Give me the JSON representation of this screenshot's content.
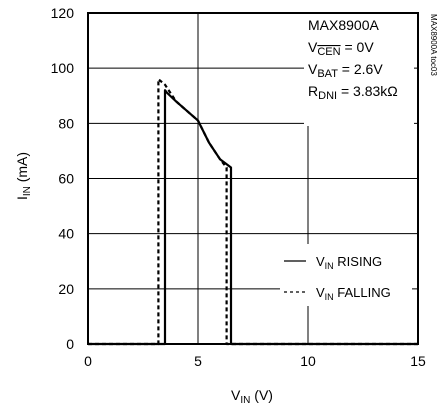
{
  "chart_data": {
    "type": "line",
    "xlabel": {
      "main": "V",
      "sub": "IN",
      "unit": " (V)"
    },
    "ylabel": {
      "main": "I",
      "sub": "IN",
      "unit": " (mA)"
    },
    "xlim": [
      0,
      15
    ],
    "ylim": [
      0,
      120
    ],
    "xticks": [
      0,
      5,
      10,
      15
    ],
    "yticks": [
      0,
      20,
      40,
      60,
      80,
      100,
      120
    ],
    "grid": true,
    "annotations": {
      "part": "MAX8900A",
      "vcen": {
        "main": "V",
        "sub": "CEN",
        "value": " = 0V"
      },
      "vbat": {
        "main": "V",
        "sub": "BAT",
        "value": " = 2.6V"
      },
      "rdni": {
        "main": "R",
        "sub": "DNI",
        "value": " = 3.83kΩ"
      }
    },
    "sidenote": "MAX8900A toc03",
    "legend_position": "bottom-right",
    "series": [
      {
        "name": {
          "main": "V",
          "sub": "IN",
          "rest": " RISING"
        },
        "style": "solid",
        "color": "#000000",
        "x": [
          0,
          3.5,
          3.5,
          3.6,
          4.0,
          5.0,
          5.5,
          6.0,
          6.5,
          6.5,
          15
        ],
        "y": [
          0,
          0,
          92,
          91,
          88,
          81,
          73,
          67,
          64,
          0,
          0
        ]
      },
      {
        "name": {
          "main": "V",
          "sub": "IN",
          "rest": " FALLING"
        },
        "style": "dashed",
        "color": "#000000",
        "x": [
          0,
          3.2,
          3.2,
          3.5,
          4.0,
          5.0,
          5.5,
          6.0,
          6.3,
          6.3,
          15
        ],
        "y": [
          0,
          0,
          96,
          94,
          88,
          81,
          73,
          67,
          64,
          0,
          0
        ]
      }
    ]
  }
}
